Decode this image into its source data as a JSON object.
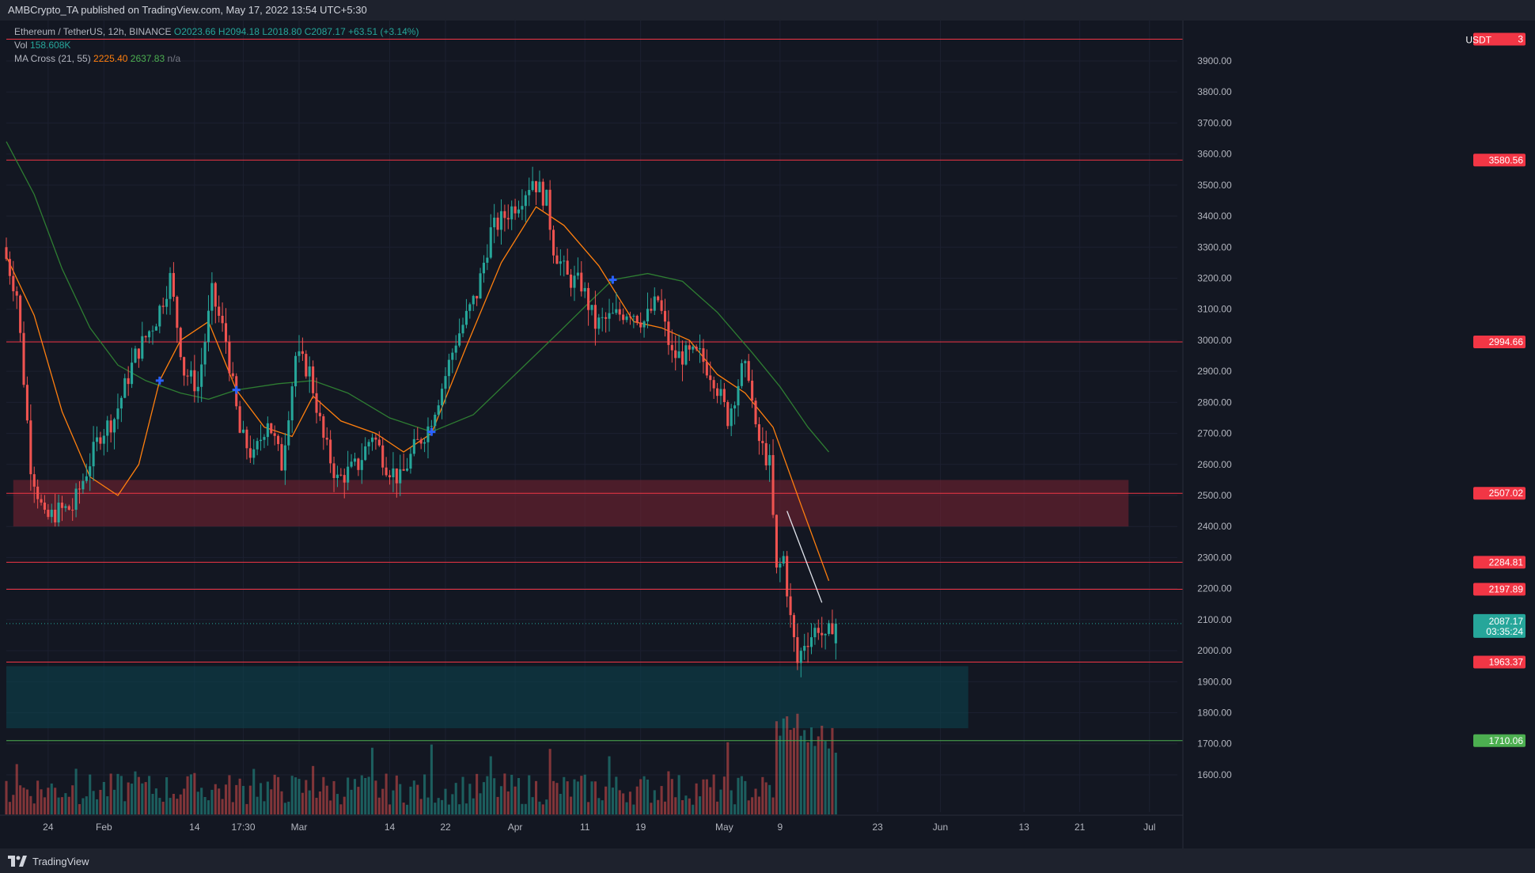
{
  "header": {
    "publisher_line": "AMBCrypto_TA published on TradingView.com, May 17, 2022 13:54 UTC+5:30"
  },
  "legend": {
    "symbol": "Ethereum / TetherUS, 12h, BINANCE",
    "ohlc": "O2023.66 H2094.18 L2018.80 C2087.17 +63.51 (+3.14%)",
    "vol_label": "Vol",
    "vol_value": "158.608K",
    "ma_label": "MA Cross (21, 55)",
    "ma_fast": "2225.40",
    "ma_slow": "2637.83",
    "ma_cross": "n/a"
  },
  "footer": {
    "brand": "TradingView"
  },
  "colors": {
    "up": "#26a69a",
    "down": "#ef5350",
    "level_line": "#f23645",
    "ma_fast": "#ff7f0e",
    "ma_slow": "#2e7d32",
    "cross": "#2962ff",
    "supply_zone": "#7b2232",
    "demand_zone": "#0b4650",
    "support_green": "#4caf50"
  },
  "chart_data": {
    "type": "candlestick",
    "symbol": "ETHUSDT",
    "interval": "12h",
    "currency_label": "USDT",
    "y_range": [
      1480,
      4030
    ],
    "x_start_date": "2022-01-18",
    "x_end_date": "2022-07-05",
    "y_ticks": [
      1600,
      1700,
      1800,
      1900,
      2000,
      2100,
      2200,
      2300,
      2400,
      2500,
      2600,
      2700,
      2800,
      2900,
      3000,
      3100,
      3200,
      3300,
      3400,
      3500,
      3600,
      3700,
      3800,
      3900
    ],
    "x_ticks": [
      {
        "label": "24",
        "date": "2022-01-24"
      },
      {
        "label": "Feb",
        "date": "2022-02-01"
      },
      {
        "label": "14",
        "date": "2022-02-14"
      },
      {
        "label": "17:30",
        "date": "2022-02-21"
      },
      {
        "label": "Mar",
        "date": "2022-03-01"
      },
      {
        "label": "14",
        "date": "2022-03-14"
      },
      {
        "label": "22",
        "date": "2022-03-22"
      },
      {
        "label": "Apr",
        "date": "2022-04-01"
      },
      {
        "label": "11",
        "date": "2022-04-11"
      },
      {
        "label": "19",
        "date": "2022-04-19"
      },
      {
        "label": "May",
        "date": "2022-05-01"
      },
      {
        "label": "9",
        "date": "2022-05-09"
      },
      {
        "label": "23",
        "date": "2022-05-23"
      },
      {
        "label": "Jun",
        "date": "2022-06-01"
      },
      {
        "label": "13",
        "date": "2022-06-13"
      },
      {
        "label": "21",
        "date": "2022-06-21"
      },
      {
        "label": "Jul",
        "date": "2022-07-01"
      }
    ],
    "horizontal_levels": [
      {
        "label": "3",
        "value": 3970,
        "color": "#f23645"
      },
      {
        "label": "3580.56",
        "value": 3580.56,
        "color": "#f23645"
      },
      {
        "label": "2994.66",
        "value": 2994.66,
        "color": "#f23645"
      },
      {
        "label": "2507.02",
        "value": 2507.02,
        "color": "#f23645"
      },
      {
        "label": "2284.81",
        "value": 2284.81,
        "color": "#f23645"
      },
      {
        "label": "2197.89",
        "value": 2197.89,
        "color": "#f23645"
      },
      {
        "label": "1963.37",
        "value": 1963.37,
        "color": "#f23645"
      },
      {
        "label": "1710.06",
        "value": 1710.06,
        "color": "#4caf50"
      }
    ],
    "last_price": {
      "label": "2087.17",
      "value": 2087.17,
      "countdown": "03:35:24"
    },
    "zones": [
      {
        "name": "supply",
        "from_date": "2022-01-19",
        "to_date": "2022-06-28",
        "low": 2400,
        "high": 2550
      },
      {
        "name": "demand",
        "from_date": "2022-01-18",
        "to_date": "2022-06-05",
        "low": 1750,
        "high": 1950
      }
    ],
    "trendline": {
      "from": {
        "date": "2022-05-10",
        "value": 2450
      },
      "to": {
        "date": "2022-05-15",
        "value": 2155
      }
    },
    "cross_markers": [
      {
        "date": "2022-02-09",
        "value": 2870
      },
      {
        "date": "2022-02-20",
        "value": 2840
      },
      {
        "date": "2022-03-20",
        "value": 2705
      },
      {
        "date": "2022-04-15",
        "value": 3195
      }
    ],
    "ma_fast_series": [
      {
        "date": "2022-01-18",
        "value": 3270
      },
      {
        "date": "2022-01-22",
        "value": 3080
      },
      {
        "date": "2022-01-26",
        "value": 2770
      },
      {
        "date": "2022-01-30",
        "value": 2560
      },
      {
        "date": "2022-02-03",
        "value": 2500
      },
      {
        "date": "2022-02-06",
        "value": 2600
      },
      {
        "date": "2022-02-09",
        "value": 2870
      },
      {
        "date": "2022-02-12",
        "value": 3000
      },
      {
        "date": "2022-02-16",
        "value": 3060
      },
      {
        "date": "2022-02-20",
        "value": 2840
      },
      {
        "date": "2022-02-24",
        "value": 2720
      },
      {
        "date": "2022-02-28",
        "value": 2690
      },
      {
        "date": "2022-03-03",
        "value": 2820
      },
      {
        "date": "2022-03-07",
        "value": 2740
      },
      {
        "date": "2022-03-12",
        "value": 2700
      },
      {
        "date": "2022-03-16",
        "value": 2640
      },
      {
        "date": "2022-03-20",
        "value": 2700
      },
      {
        "date": "2022-03-25",
        "value": 2980
      },
      {
        "date": "2022-03-30",
        "value": 3250
      },
      {
        "date": "2022-04-04",
        "value": 3430
      },
      {
        "date": "2022-04-08",
        "value": 3370
      },
      {
        "date": "2022-04-13",
        "value": 3240
      },
      {
        "date": "2022-04-18",
        "value": 3060
      },
      {
        "date": "2022-04-22",
        "value": 3040
      },
      {
        "date": "2022-04-26",
        "value": 3000
      },
      {
        "date": "2022-04-30",
        "value": 2890
      },
      {
        "date": "2022-05-04",
        "value": 2830
      },
      {
        "date": "2022-05-08",
        "value": 2720
      },
      {
        "date": "2022-05-12",
        "value": 2470
      },
      {
        "date": "2022-05-16",
        "value": 2225
      }
    ],
    "ma_slow_series": [
      {
        "date": "2022-01-18",
        "value": 3640
      },
      {
        "date": "2022-01-22",
        "value": 3470
      },
      {
        "date": "2022-01-26",
        "value": 3230
      },
      {
        "date": "2022-01-30",
        "value": 3040
      },
      {
        "date": "2022-02-03",
        "value": 2920
      },
      {
        "date": "2022-02-07",
        "value": 2870
      },
      {
        "date": "2022-02-12",
        "value": 2830
      },
      {
        "date": "2022-02-16",
        "value": 2810
      },
      {
        "date": "2022-02-20",
        "value": 2840
      },
      {
        "date": "2022-02-26",
        "value": 2860
      },
      {
        "date": "2022-03-03",
        "value": 2870
      },
      {
        "date": "2022-03-08",
        "value": 2830
      },
      {
        "date": "2022-03-14",
        "value": 2750
      },
      {
        "date": "2022-03-20",
        "value": 2705
      },
      {
        "date": "2022-03-26",
        "value": 2760
      },
      {
        "date": "2022-04-01",
        "value": 2890
      },
      {
        "date": "2022-04-07",
        "value": 3020
      },
      {
        "date": "2022-04-12",
        "value": 3130
      },
      {
        "date": "2022-04-15",
        "value": 3195
      },
      {
        "date": "2022-04-20",
        "value": 3215
      },
      {
        "date": "2022-04-25",
        "value": 3190
      },
      {
        "date": "2022-04-30",
        "value": 3090
      },
      {
        "date": "2022-05-05",
        "value": 2960
      },
      {
        "date": "2022-05-09",
        "value": 2850
      },
      {
        "date": "2022-05-13",
        "value": 2720
      },
      {
        "date": "2022-05-16",
        "value": 2640
      }
    ],
    "candle_anchors": [
      {
        "date": "2022-01-18",
        "close": 3300
      },
      {
        "date": "2022-01-20",
        "close": 3150
      },
      {
        "date": "2022-01-22",
        "close": 2600
      },
      {
        "date": "2022-01-24",
        "close": 2420
      },
      {
        "date": "2022-01-26",
        "close": 2450
      },
      {
        "date": "2022-01-28",
        "close": 2460
      },
      {
        "date": "2022-01-30",
        "close": 2580
      },
      {
        "date": "2022-02-01",
        "close": 2700
      },
      {
        "date": "2022-02-03",
        "close": 2750
      },
      {
        "date": "2022-02-06",
        "close": 2950
      },
      {
        "date": "2022-02-09",
        "close": 3070
      },
      {
        "date": "2022-02-11",
        "close": 3200
      },
      {
        "date": "2022-02-13",
        "close": 2900
      },
      {
        "date": "2022-02-15",
        "close": 2850
      },
      {
        "date": "2022-02-17",
        "close": 3150
      },
      {
        "date": "2022-02-19",
        "close": 3000
      },
      {
        "date": "2022-02-21",
        "close": 2700
      },
      {
        "date": "2022-02-23",
        "close": 2620
      },
      {
        "date": "2022-02-25",
        "close": 2750
      },
      {
        "date": "2022-02-27",
        "close": 2600
      },
      {
        "date": "2022-03-01",
        "close": 2950
      },
      {
        "date": "2022-03-03",
        "close": 2900
      },
      {
        "date": "2022-03-05",
        "close": 2680
      },
      {
        "date": "2022-03-07",
        "close": 2550
      },
      {
        "date": "2022-03-10",
        "close": 2600
      },
      {
        "date": "2022-03-12",
        "close": 2700
      },
      {
        "date": "2022-03-14",
        "close": 2600
      },
      {
        "date": "2022-03-16",
        "close": 2550
      },
      {
        "date": "2022-03-18",
        "close": 2650
      },
      {
        "date": "2022-03-20",
        "close": 2720
      },
      {
        "date": "2022-03-22",
        "close": 2850
      },
      {
        "date": "2022-03-24",
        "close": 3000
      },
      {
        "date": "2022-03-27",
        "close": 3150
      },
      {
        "date": "2022-03-29",
        "close": 3350
      },
      {
        "date": "2022-03-31",
        "close": 3400
      },
      {
        "date": "2022-04-02",
        "close": 3450
      },
      {
        "date": "2022-04-04",
        "close": 3520
      },
      {
        "date": "2022-04-06",
        "close": 3450
      },
      {
        "date": "2022-04-07",
        "close": 3300
      },
      {
        "date": "2022-04-09",
        "close": 3200
      },
      {
        "date": "2022-04-11",
        "close": 3180
      },
      {
        "date": "2022-04-13",
        "close": 3050
      },
      {
        "date": "2022-04-15",
        "close": 3070
      },
      {
        "date": "2022-04-18",
        "close": 3100
      },
      {
        "date": "2022-04-20",
        "close": 3060
      },
      {
        "date": "2022-04-22",
        "close": 3130
      },
      {
        "date": "2022-04-24",
        "close": 2950
      },
      {
        "date": "2022-04-26",
        "close": 2950
      },
      {
        "date": "2022-04-28",
        "close": 2950
      },
      {
        "date": "2022-04-30",
        "close": 2880
      },
      {
        "date": "2022-05-02",
        "close": 2750
      },
      {
        "date": "2022-05-04",
        "close": 2900
      },
      {
        "date": "2022-05-05",
        "close": 2900
      },
      {
        "date": "2022-05-06",
        "close": 2700
      },
      {
        "date": "2022-05-08",
        "close": 2600
      },
      {
        "date": "2022-05-09",
        "close": 2250
      },
      {
        "date": "2022-05-10",
        "close": 2300
      },
      {
        "date": "2022-05-11",
        "close": 2100
      },
      {
        "date": "2022-05-12",
        "close": 1960
      },
      {
        "date": "2022-05-13",
        "close": 2030
      },
      {
        "date": "2022-05-14",
        "close": 2050
      },
      {
        "date": "2022-05-15",
        "close": 2080
      },
      {
        "date": "2022-05-16",
        "close": 2023.66
      },
      {
        "date": "2022-05-17",
        "close": 2087.17
      }
    ]
  }
}
